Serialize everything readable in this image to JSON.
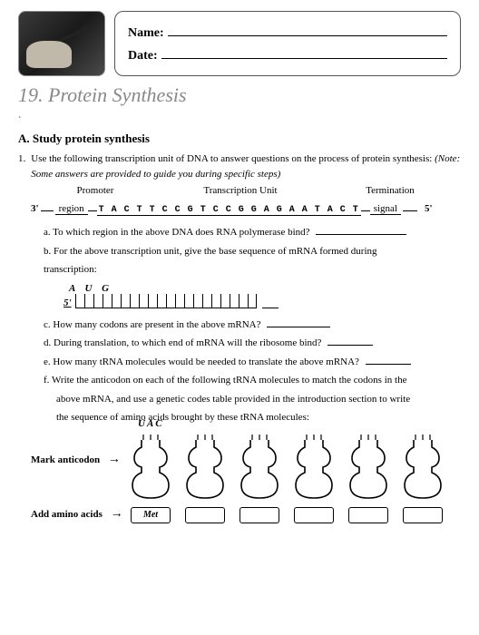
{
  "header": {
    "name_label": "Name:",
    "date_label": "Date:"
  },
  "chapter": {
    "number": "19.",
    "title": "Protein Synthesis"
  },
  "section": {
    "letter": "A.",
    "heading": "Study protein synthesis"
  },
  "q1": {
    "number": "1.",
    "text": "Use the following transcription unit of DNA to answer questions on the process of protein synthesis: ",
    "note": "(Note: Some answers are provided to guide you during specific steps)"
  },
  "dna": {
    "label_promoter": "Promoter",
    "label_unit": "Transcription Unit",
    "label_term": "Termination",
    "three_prime": "3'",
    "region": "region",
    "sequence": "T A C T T C C G T C C G G A G A A T A C T",
    "signal": "signal",
    "five_prime": "5'"
  },
  "qa": {
    "text": "a.  To which region in the above DNA does RNA polymerase bind?"
  },
  "qb": {
    "text": "b.  For the above transcription unit, give the base sequence of mRNA formed during",
    "text2": "transcription:"
  },
  "mrna": {
    "aug": "A  U  G",
    "five_prime": "5'",
    "tick_count": 20
  },
  "qc": {
    "text": "c.  How many codons are present in the above mRNA?"
  },
  "qd": {
    "text": "d.  During translation, to which end of mRNA will the ribosome bind?"
  },
  "qe": {
    "text": "e.  How many tRNA molecules would be needed to translate the above mRNA?"
  },
  "qf": {
    "text": "f.  Write the anticodon on each of the following tRNA molecules to match the codons in the",
    "text2": "above mRNA, and use a genetic codes table provided in the introduction section to write",
    "text3": "the sequence of amino acids brought by these tRNA molecules:"
  },
  "trna": {
    "mark_label": "Mark anticodon",
    "uac": "UAC",
    "count": 6,
    "add_label": "Add amino acids",
    "met": "Met"
  },
  "style": {
    "page_bg": "#ffffff",
    "text_color": "#000000",
    "chapter_color": "#888888",
    "border_color": "#555555"
  }
}
